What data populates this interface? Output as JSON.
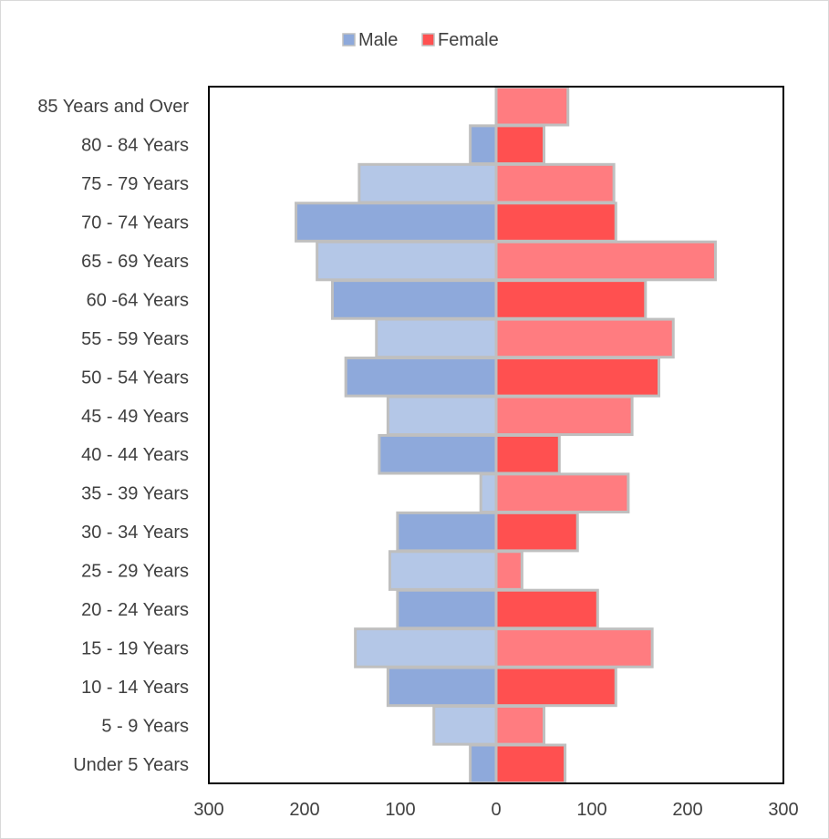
{
  "chart_data": {
    "type": "bar",
    "orientation": "horizontal",
    "title": "",
    "xlabel": "",
    "ylabel": "",
    "xlim": [
      -300,
      300
    ],
    "xticks": [
      -300,
      -200,
      -100,
      0,
      100,
      200,
      300
    ],
    "xtick_labels": [
      "300",
      "200",
      "100",
      "0",
      "100",
      "200",
      "300"
    ],
    "grid": false,
    "legend_position": "top",
    "categories": [
      "Under 5 Years",
      "5 - 9 Years",
      "10 - 14 Years",
      "15 - 19 Years",
      "20 - 24 Years",
      "25 - 29 Years",
      "30 - 34 Years",
      "35 - 39 Years",
      "40 - 44 Years",
      "45 - 49 Years",
      "50 - 54 Years",
      "55 - 59 Years",
      "60 -64 Years",
      "65 - 69 Years",
      "70 - 74 Years",
      "75 - 79 Years",
      "80 - 84 Years",
      "85 Years and Over"
    ],
    "series": [
      {
        "name": "Male",
        "color": "#8ea9db",
        "alt_color": "#b4c7e7",
        "values": [
          -27,
          -65,
          -113,
          -147,
          -103,
          -111,
          -103,
          -16,
          -122,
          -113,
          -157,
          -125,
          -171,
          -187,
          -209,
          -143,
          -27,
          0
        ]
      },
      {
        "name": "Female",
        "color": "#ff5050",
        "alt_color": "#ff7c80",
        "values": [
          72,
          50,
          125,
          163,
          106,
          27,
          85,
          138,
          66,
          142,
          170,
          185,
          156,
          229,
          125,
          123,
          50,
          75
        ]
      }
    ]
  }
}
